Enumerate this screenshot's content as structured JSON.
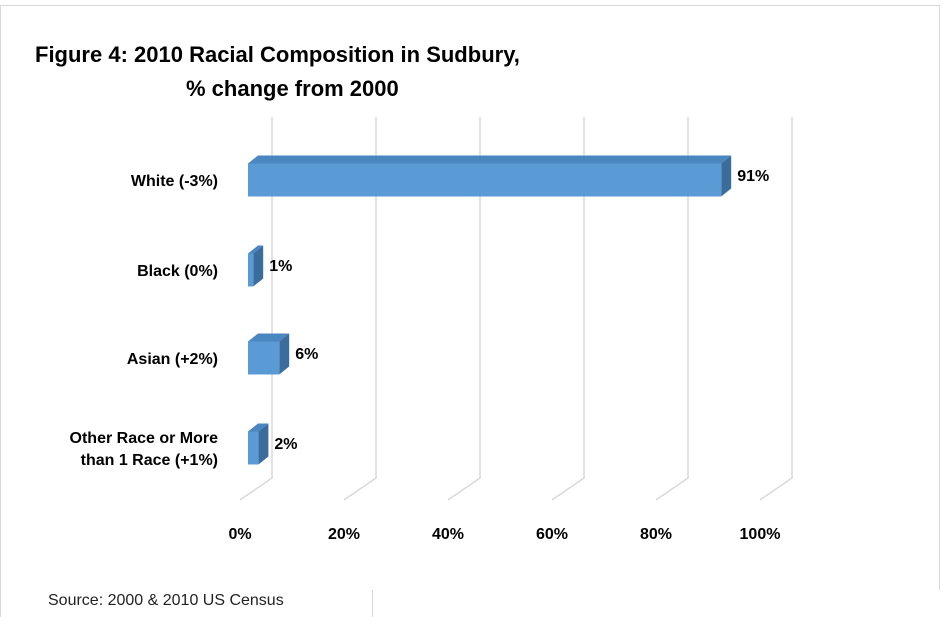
{
  "chart_data": {
    "type": "bar3d_horizontal",
    "title": "Figure 4: 2010 Racial Composition in Sudbury,",
    "subtitle": "% change from 2000",
    "source": "Source: 2000 & 2010 US Census",
    "categories": [
      "White (-3%)",
      "Black (0%)",
      "Asian (+2%)",
      "Other Race or More\nthan 1 Race (+1%)"
    ],
    "values": [
      91,
      1,
      6,
      2
    ],
    "value_labels": [
      "91%",
      "1%",
      "6%",
      "2%"
    ],
    "color": "#5b9bd5",
    "xlim": [
      0,
      100
    ],
    "xticks": [
      {
        "value": 0,
        "label": "0%"
      },
      {
        "value": 20,
        "label": "20%"
      },
      {
        "value": 40,
        "label": "40%"
      },
      {
        "value": 60,
        "label": "60%"
      },
      {
        "value": 80,
        "label": "80%"
      },
      {
        "value": 100,
        "label": "100%"
      }
    ],
    "grid": true
  }
}
